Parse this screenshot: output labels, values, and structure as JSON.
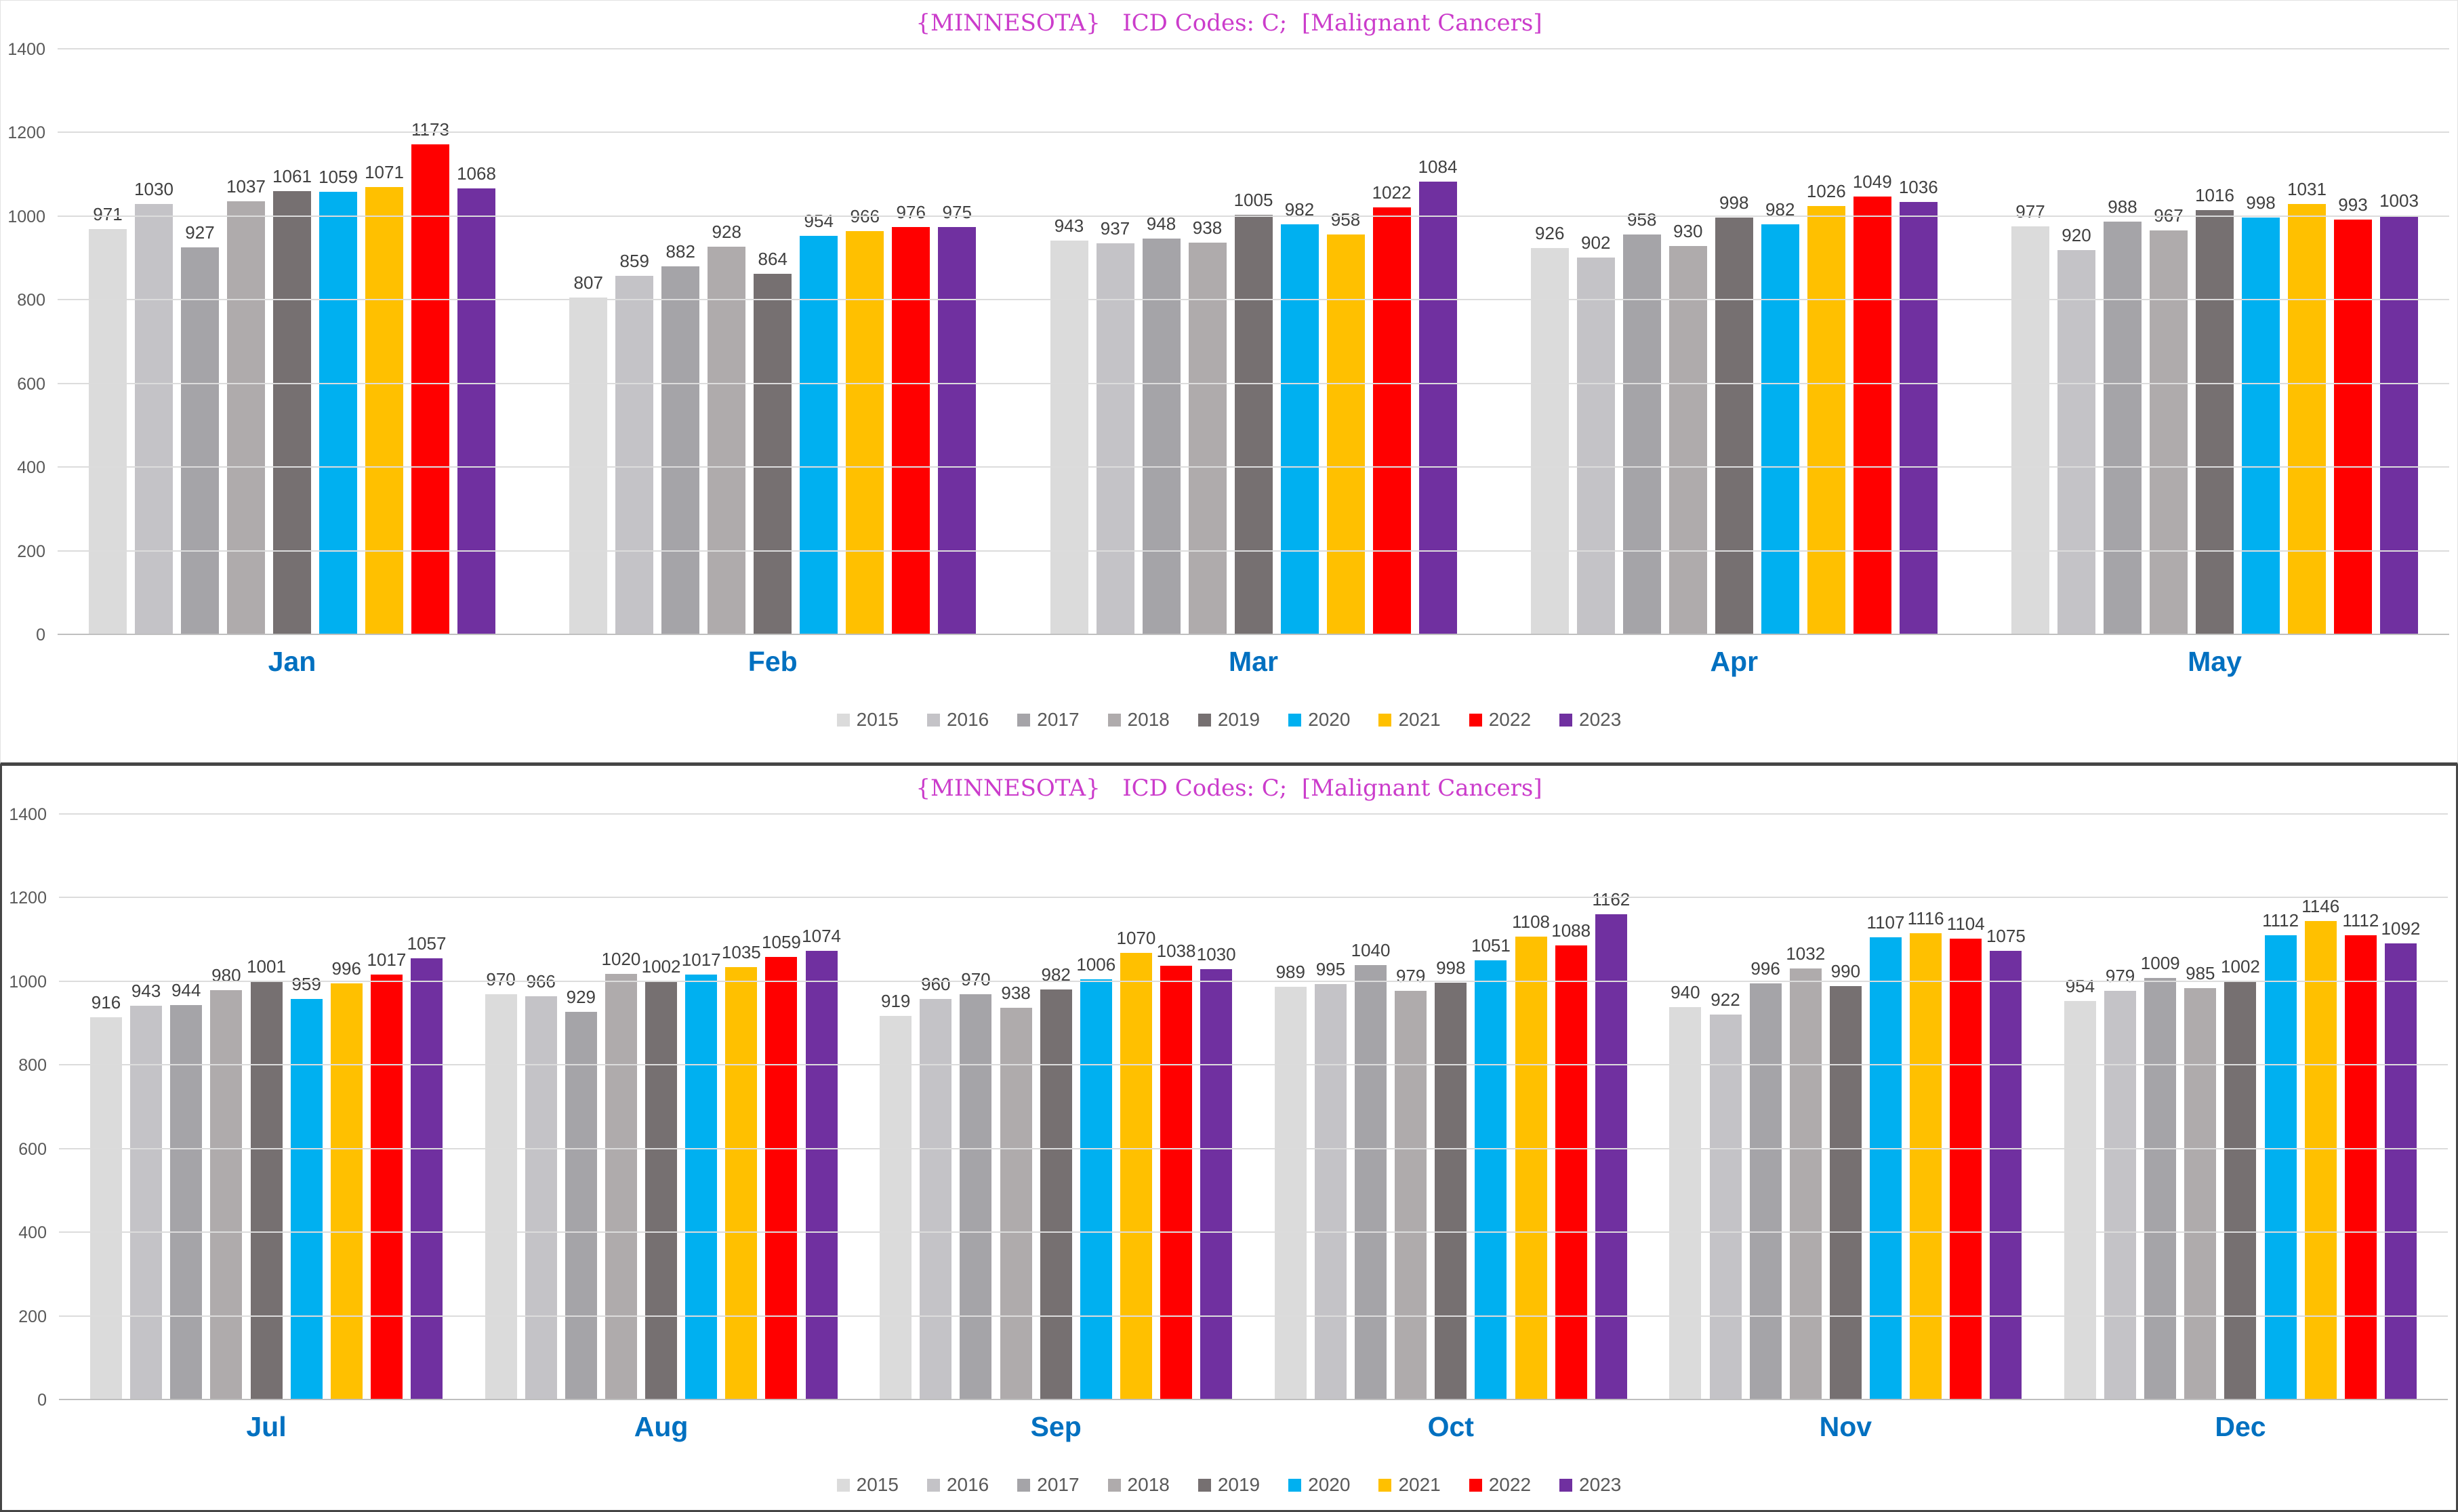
{
  "colors": {
    "title": "#cb3ccb",
    "month_label": "#0070c0",
    "data_label": "#404040",
    "axis_label": "#595959",
    "gridline": "#dcdcdc"
  },
  "chart_data": [
    {
      "type": "bar",
      "title": "{MINNESOTA}   ICD Codes: C;  [Malignant Cancers]",
      "categories": [
        "Jan",
        "Feb",
        "Mar",
        "Apr",
        "May"
      ],
      "series": [
        {
          "name": "2015",
          "color": "#dbdbdb",
          "values": [
            971,
            807,
            943,
            926,
            977
          ]
        },
        {
          "name": "2016",
          "color": "#c4c3c7",
          "values": [
            1030,
            859,
            937,
            902,
            920
          ]
        },
        {
          "name": "2017",
          "color": "#a5a4a8",
          "values": [
            927,
            882,
            948,
            958,
            988
          ]
        },
        {
          "name": "2018",
          "color": "#afabac",
          "values": [
            1037,
            928,
            938,
            930,
            967
          ]
        },
        {
          "name": "2019",
          "color": "#767071",
          "values": [
            1061,
            864,
            1005,
            998,
            1016
          ]
        },
        {
          "name": "2020",
          "color": "#00b0f0",
          "values": [
            1059,
            954,
            982,
            982,
            998
          ]
        },
        {
          "name": "2021",
          "color": "#ffc000",
          "values": [
            1071,
            966,
            958,
            1026,
            1031
          ]
        },
        {
          "name": "2022",
          "color": "#ff0000",
          "values": [
            1173,
            976,
            1022,
            1049,
            993
          ]
        },
        {
          "name": "2023",
          "color": "#7030a0",
          "values": [
            1068,
            975,
            1084,
            1036,
            1003
          ]
        }
      ],
      "ylim": [
        0,
        1400
      ],
      "yticks": [
        0,
        200,
        400,
        600,
        800,
        1000,
        1200,
        1400
      ],
      "grid": true,
      "legend_position": "bottom"
    },
    {
      "type": "bar",
      "title": "{MINNESOTA}   ICD Codes: C;  [Malignant Cancers]",
      "categories": [
        "Jul",
        "Aug",
        "Sep",
        "Oct",
        "Nov",
        "Dec"
      ],
      "series": [
        {
          "name": "2015",
          "color": "#dbdbdb",
          "values": [
            916,
            970,
            919,
            989,
            940,
            954
          ]
        },
        {
          "name": "2016",
          "color": "#c4c3c7",
          "values": [
            943,
            966,
            960,
            995,
            922,
            979
          ]
        },
        {
          "name": "2017",
          "color": "#a5a4a8",
          "values": [
            944,
            929,
            970,
            1040,
            996,
            1009
          ]
        },
        {
          "name": "2018",
          "color": "#afabac",
          "values": [
            980,
            1020,
            938,
            979,
            1032,
            985
          ]
        },
        {
          "name": "2019",
          "color": "#767071",
          "values": [
            1001,
            1002,
            982,
            998,
            990,
            1002
          ]
        },
        {
          "name": "2020",
          "color": "#00b0f0",
          "values": [
            959,
            1017,
            1006,
            1051,
            1107,
            1112
          ]
        },
        {
          "name": "2021",
          "color": "#ffc000",
          "values": [
            996,
            1035,
            1070,
            1108,
            1116,
            1146
          ]
        },
        {
          "name": "2022",
          "color": "#ff0000",
          "values": [
            1017,
            1059,
            1038,
            1088,
            1104,
            1112
          ]
        },
        {
          "name": "2023",
          "color": "#7030a0",
          "values": [
            1057,
            1074,
            1030,
            1162,
            1075,
            1092
          ]
        }
      ],
      "ylim": [
        0,
        1400
      ],
      "yticks": [
        0,
        200,
        400,
        600,
        800,
        1000,
        1200,
        1400
      ],
      "grid": true,
      "legend_position": "bottom"
    }
  ]
}
